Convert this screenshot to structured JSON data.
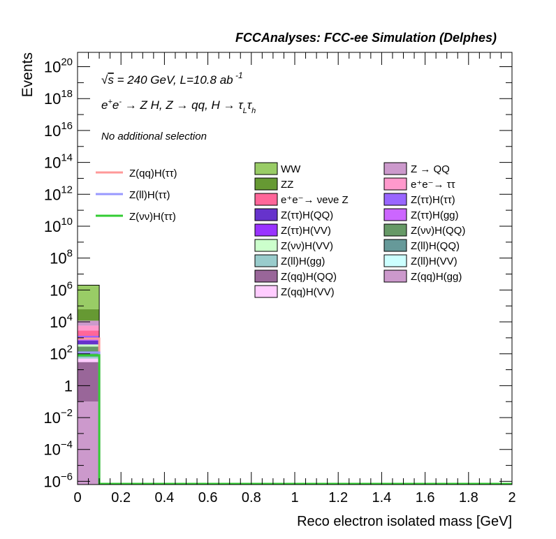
{
  "chart_data": {
    "type": "bar",
    "title": "FCCAnalyses: FCC-ee Simulation (Delphes)",
    "xlabel": "Reco electron isolated mass [GeV]",
    "ylabel": "Events",
    "x_range": [
      0,
      2
    ],
    "y_range_log10": [
      -6.2,
      20.9
    ],
    "y_scale": "log",
    "x_ticks": [
      "0",
      "0.2",
      "0.4",
      "0.6",
      "0.8",
      "1",
      "1.2",
      "1.4",
      "1.6",
      "1.8",
      "2"
    ],
    "y_ticks": [
      {
        "exp": -6,
        "base": "10",
        "sup": "−6"
      },
      {
        "exp": -4,
        "base": "10",
        "sup": "−4"
      },
      {
        "exp": -2,
        "base": "10",
        "sup": "−2"
      },
      {
        "exp": 0,
        "base": "1",
        "sup": ""
      },
      {
        "exp": 2,
        "base": "10",
        "sup": "2"
      },
      {
        "exp": 4,
        "base": "10",
        "sup": "4"
      },
      {
        "exp": 6,
        "base": "10",
        "sup": "6"
      },
      {
        "exp": 8,
        "base": "10",
        "sup": "8"
      },
      {
        "exp": 10,
        "base": "10",
        "sup": "10"
      },
      {
        "exp": 12,
        "base": "10",
        "sup": "12"
      },
      {
        "exp": 14,
        "base": "10",
        "sup": "14"
      },
      {
        "exp": 16,
        "base": "10",
        "sup": "16"
      },
      {
        "exp": 18,
        "base": "10",
        "sup": "18"
      },
      {
        "exp": 20,
        "base": "10",
        "sup": "20"
      }
    ],
    "bin": {
      "low": 0,
      "high": 0.1
    },
    "stack_total": 2000000,
    "stack": [
      {
        "name": "Z(qq)H(gg)",
        "color": "#cc99cc",
        "value": 0.1
      },
      {
        "name": "Z(qq)H(QQ)",
        "color": "#996699",
        "value": 30
      },
      {
        "name": "Z(qq)H(VV)",
        "color": "#ffccff",
        "value": 20
      },
      {
        "name": "Z(ll)H(gg)",
        "color": "#99cccc",
        "value": 15
      },
      {
        "name": "Z(ll)H(QQ)",
        "color": "#669999",
        "value": 50
      },
      {
        "name": "Z(ll)H(VV)",
        "color": "#ccffff",
        "value": 20
      },
      {
        "name": "Z(νν)H(QQ)",
        "color": "#669966",
        "value": 150
      },
      {
        "name": "Z(νν)H(VV)",
        "color": "#ccffcc",
        "value": 100
      },
      {
        "name": "Z(ττ)H(QQ)",
        "color": "#6633cc",
        "value": 300
      },
      {
        "name": "Z(ττ)H(gg)",
        "color": "#cc66ff",
        "value": 150
      },
      {
        "name": "Z(ττ)H(VV)",
        "color": "#9933ff",
        "value": 300
      },
      {
        "name": "Z(ττ)H(ττ)",
        "color": "#9966ff",
        "value": 200
      },
      {
        "name": "e⁺e⁻→ νeνe Z",
        "color": "#ff6699",
        "value": 1500
      },
      {
        "name": "e⁺e⁻→ ττ",
        "color": "#ff99cc",
        "value": 3000
      },
      {
        "name": "Z → QQ",
        "color": "#cc99cc",
        "value": 6000
      },
      {
        "name": "ZZ",
        "color": "#669933",
        "value": 50000
      },
      {
        "name": "WW",
        "color": "#99cc66",
        "value": 1900000
      }
    ],
    "signals": [
      {
        "name": "Z(qq)H(ττ)",
        "color": "#ff9999",
        "value": 900
      },
      {
        "name": "Z(ll)H(ττ)",
        "color": "#9999ff",
        "value": 120
      },
      {
        "name": "Z(νν)H(ττ)",
        "color": "#33cc33",
        "value": 80
      }
    ],
    "legend_bkg_col1": [
      "WW",
      "ZZ",
      "e⁺e⁻→ νeνe Z",
      "Z(ττ)H(QQ)",
      "Z(ττ)H(VV)",
      "Z(νν)H(VV)",
      "Z(ll)H(gg)",
      "Z(qq)H(QQ)",
      "Z(qq)H(VV)"
    ],
    "legend_bkg_col2": [
      "Z → QQ",
      "e⁺e⁻→ ττ",
      "Z(ττ)H(ττ)",
      "Z(ττ)H(gg)",
      "Z(νν)H(QQ)",
      "Z(ll)H(QQ)",
      "Z(ll)H(VV)",
      "Z(qq)H(gg)"
    ],
    "annotations": {
      "energy": "√s = 240 GeV, L=10.8 ab⁻¹",
      "process": "e⁺e⁻ → Z H, Z → qq, H → τLτh",
      "selection": "No additional selection"
    }
  }
}
